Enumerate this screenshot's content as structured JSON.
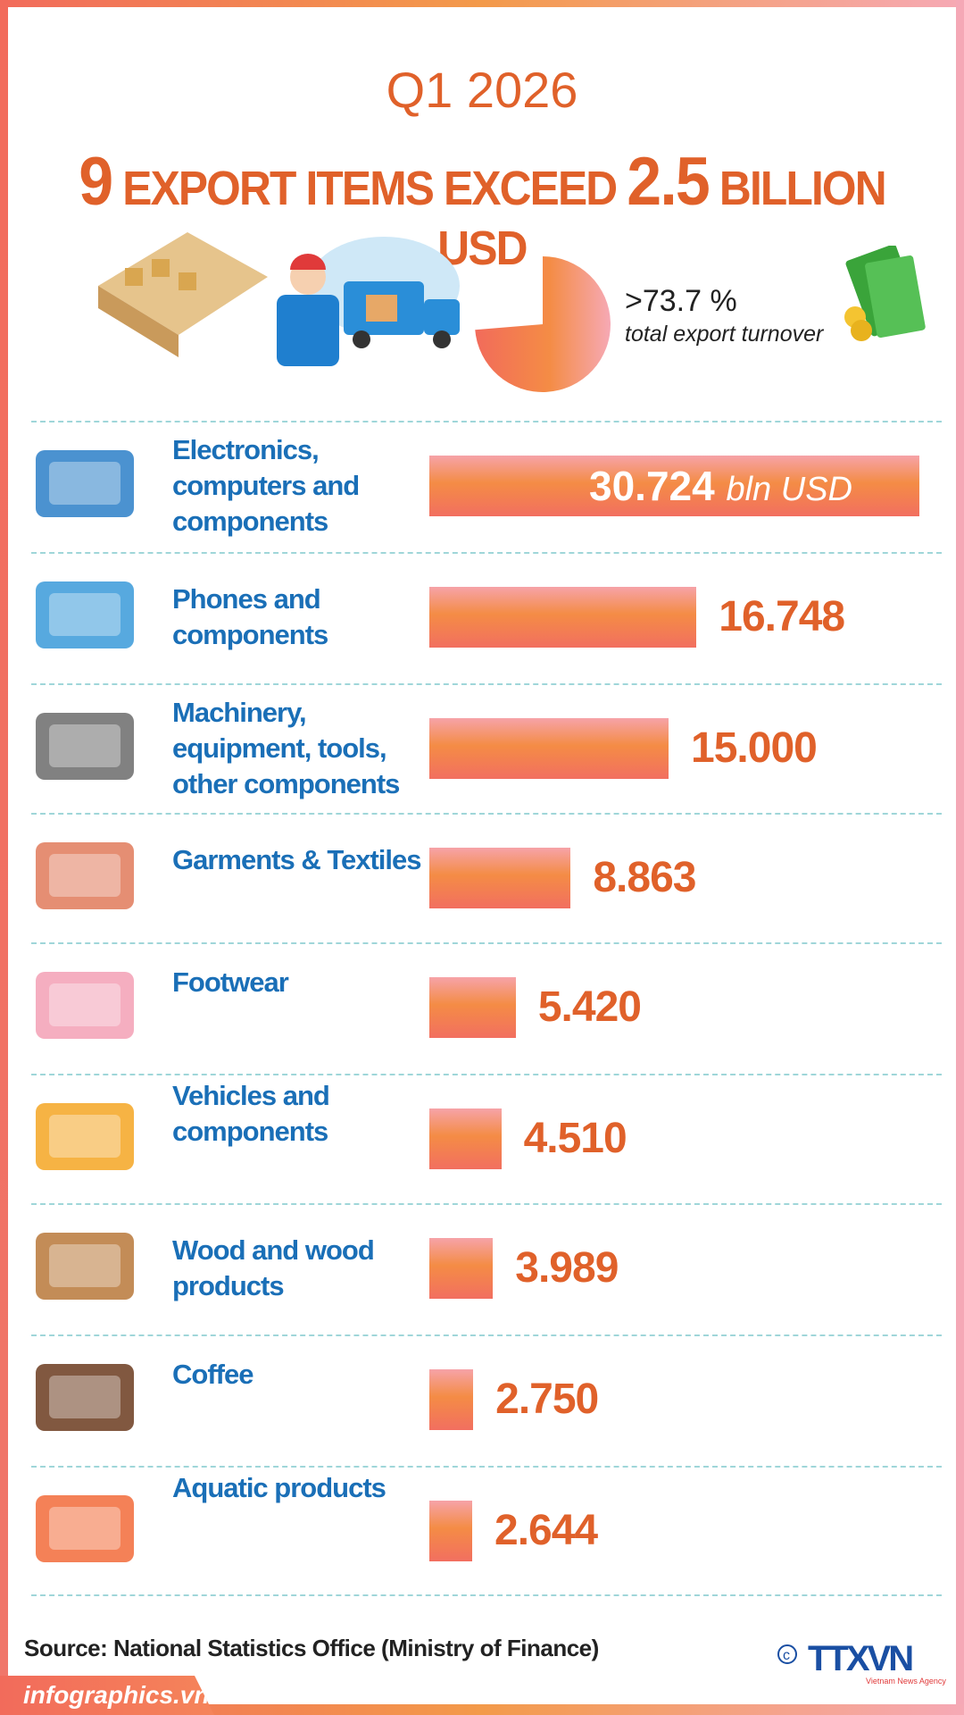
{
  "header": {
    "period": "Q1 2026",
    "headline_num": "9",
    "headline_mid": "EXPORT ITEMS EXCEED",
    "headline_num2": "2.5",
    "headline_end": "BILLION USD"
  },
  "share": {
    "value": 73.7,
    "text": ">73.7 %",
    "caption": "total export turnover"
  },
  "unit": "bln USD",
  "items": [
    {
      "label": "Electronics, computers and components",
      "value": 30.724,
      "text": "30.724",
      "icon": "laptop-icon"
    },
    {
      "label": "Phones and components",
      "value": 16.748,
      "text": "16.748",
      "icon": "phone-icon"
    },
    {
      "label": "Machinery, equipment, tools, other components",
      "value": 15.0,
      "text": "15.000",
      "icon": "engine-icon"
    },
    {
      "label": "Garments & Textiles",
      "value": 8.863,
      "text": "8.863",
      "icon": "clothes-rack-icon"
    },
    {
      "label": "Footwear",
      "value": 5.42,
      "text": "5.420",
      "icon": "shoes-icon"
    },
    {
      "label": "Vehicles and components",
      "value": 4.51,
      "text": "4.510",
      "icon": "truck-icon"
    },
    {
      "label": "Wood and wood products",
      "value": 3.989,
      "text": "3.989",
      "icon": "wardrobe-icon"
    },
    {
      "label": "Coffee",
      "value": 2.75,
      "text": "2.750",
      "icon": "coffee-beans-icon"
    },
    {
      "label": "Aquatic products",
      "value": 2.644,
      "text": "2.644",
      "icon": "seafood-icon"
    }
  ],
  "source": "Source: National Statistics Office (Ministry of Finance)",
  "footer": {
    "site": "infographics.vn",
    "logo": "TTXVN",
    "logo_sub": "Vietnam News Agency"
  },
  "colors": {
    "accent": "#e0612a",
    "label": "#1a6fb7",
    "separator": "#9fd6d9"
  },
  "chart_data": {
    "type": "bar",
    "categories": [
      "Electronics, computers and components",
      "Phones and components",
      "Machinery, equipment, tools, other components",
      "Garments & Textiles",
      "Footwear",
      "Vehicles and components",
      "Wood and wood products",
      "Coffee",
      "Aquatic products"
    ],
    "values": [
      30.724,
      16.748,
      15.0,
      8.863,
      5.42,
      4.51,
      3.989,
      2.75,
      2.644
    ],
    "orientation": "horizontal",
    "unit": "bln USD"
  }
}
